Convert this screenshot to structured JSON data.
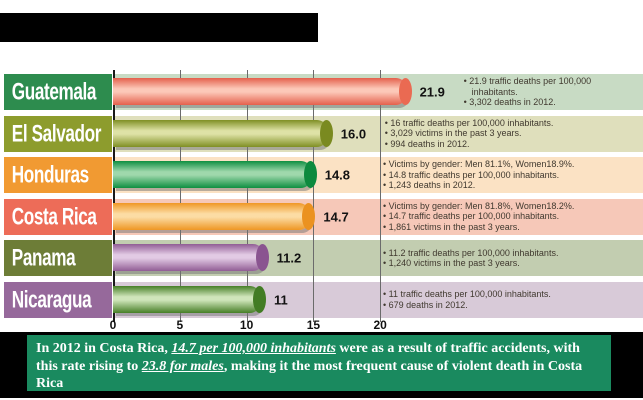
{
  "chart_data": {
    "type": "bar",
    "orientation": "horizontal",
    "categories": [
      "Guatemala",
      "El Salvador",
      "Honduras",
      "Costa Rica",
      "Panama",
      "Nicaragua"
    ],
    "values": [
      21.9,
      16.0,
      14.8,
      14.7,
      11.2,
      11
    ],
    "value_labels": [
      "21.9",
      "16.0",
      "14.8",
      "14.7",
      "11.2",
      "11"
    ],
    "unit": "traffic deaths per 100,000 inhabitants",
    "xlim": [
      0,
      24.6
    ],
    "xticks": [
      0,
      5,
      10,
      15,
      20
    ],
    "xtick_labels": [
      "0",
      "5",
      "10",
      "15",
      "20"
    ],
    "grid": true,
    "legend": "none"
  },
  "rows": [
    {
      "country": "Guatemala",
      "value": 21.9,
      "value_label": "21.9",
      "label_color": "#2d8c4e",
      "bar_color": "#e4604c",
      "bar_highlight": "#fcc8b8",
      "cap_color": "#ea6a52",
      "band_color": "#c8dbc4",
      "notes": [
        "21.9 traffic deaths per 100,000 inhabitants.",
        "3,302 deaths in 2012."
      ]
    },
    {
      "country": "El Salvador",
      "value": 16.0,
      "value_label": "16.0",
      "label_color": "#8d9c2d",
      "bar_color": "#7f8f24",
      "bar_highlight": "#dee2a6",
      "cap_color": "#7a8a20",
      "band_color": "#dfdfbc",
      "notes": [
        "16 traffic deaths per 100,000 inhabitants.",
        "3,029 victims in the past 3 years.",
        "994 deaths in 2012."
      ]
    },
    {
      "country": "Honduras",
      "value": 14.8,
      "value_label": "14.8",
      "label_color": "#f19a32",
      "bar_color": "#0e8f41",
      "bar_highlight": "#9fd8ac",
      "cap_color": "#0c8a3e",
      "band_color": "#fbe2c4",
      "notes": [
        "Victims by gender: Men 81.1%, Women18.9%.",
        "14.8 traffic deaths per 100,000 inhabitants.",
        "1,243 deaths in 2012."
      ]
    },
    {
      "country": "Costa Rica",
      "value": 14.7,
      "value_label": "14.7",
      "label_color": "#ed6c58",
      "bar_color": "#ef9724",
      "bar_highlight": "#fcdca4",
      "cap_color": "#eb9220",
      "band_color": "#f6c8b8",
      "notes": [
        "Victims by gender: Men 81.8%, Women18.2%.",
        "14.7 traffic deaths per 100,000 inhabitants.",
        "1,861 victims in the past 3 years."
      ]
    },
    {
      "country": "Panama",
      "value": 11.2,
      "value_label": "11.2",
      "label_color": "#6d7d37",
      "bar_color": "#915d95",
      "bar_highlight": "#e2cae4",
      "cap_color": "#8a5490",
      "band_color": "#c2cdb0",
      "notes": [
        "11.2 traffic deaths per 100,000 inhabitants.",
        "1,240 victims in the past 3 years."
      ]
    },
    {
      "country": "Nicaragua",
      "value": 11,
      "value_label": "11",
      "label_color": "#96699b",
      "bar_color": "#477f27",
      "bar_highlight": "#cfe5ba",
      "cap_color": "#427c24",
      "band_color": "#d8cad8",
      "notes": [
        "11 traffic deaths per 100,000 inhabitants.",
        "679 deaths in 2012."
      ]
    }
  ],
  "x_axis": {
    "tick_values": [
      0,
      5,
      10,
      15,
      20
    ],
    "tick_labels": [
      "0",
      "5",
      "10",
      "15",
      "20"
    ]
  },
  "caption": {
    "background_color": "#1a8a5f",
    "text_color": "#ffffff",
    "part1": "In 2012 in Costa Rica, ",
    "em1": "14.7 per 100,000 inhabitants",
    "part2": " were as a result of traffic accidents, with this rate rising to ",
    "em2": "23.8 for males",
    "part3": ", making it the most frequent cause of violent death in Costa Rica"
  }
}
